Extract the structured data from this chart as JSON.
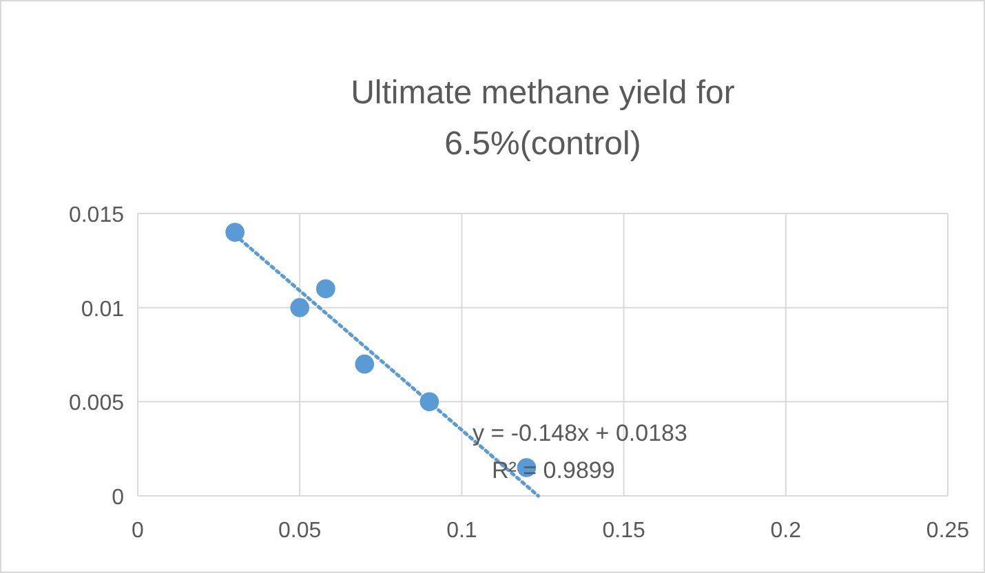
{
  "chart_data": {
    "type": "scatter",
    "title": "Ultimate methane yield for\n6.5%(control)",
    "xlim": [
      0,
      0.25
    ],
    "xticks": [
      0,
      0.05,
      0.1,
      0.15,
      0.2,
      0.25
    ],
    "ylim": [
      0,
      0.015
    ],
    "yticks": [
      0,
      0.005,
      0.01,
      0.015
    ],
    "grid": true,
    "series": [
      {
        "color": "#5b9bd5",
        "marker": "circle",
        "x": [
          0.03,
          0.05,
          0.058,
          0.07,
          0.09,
          0.12
        ],
        "values": [
          0.014,
          0.01,
          0.011,
          0.007,
          0.005,
          0.0015
        ]
      },
      {
        "type": "line",
        "color": "#5b9bd5",
        "line_style": "dotted",
        "marker": "none",
        "x": [
          0.03,
          0.1236
        ],
        "values": [
          0.01386,
          0
        ]
      }
    ],
    "annotations": [
      "y = -0.148x + 0.0183",
      "R² = 0.9899"
    ]
  }
}
